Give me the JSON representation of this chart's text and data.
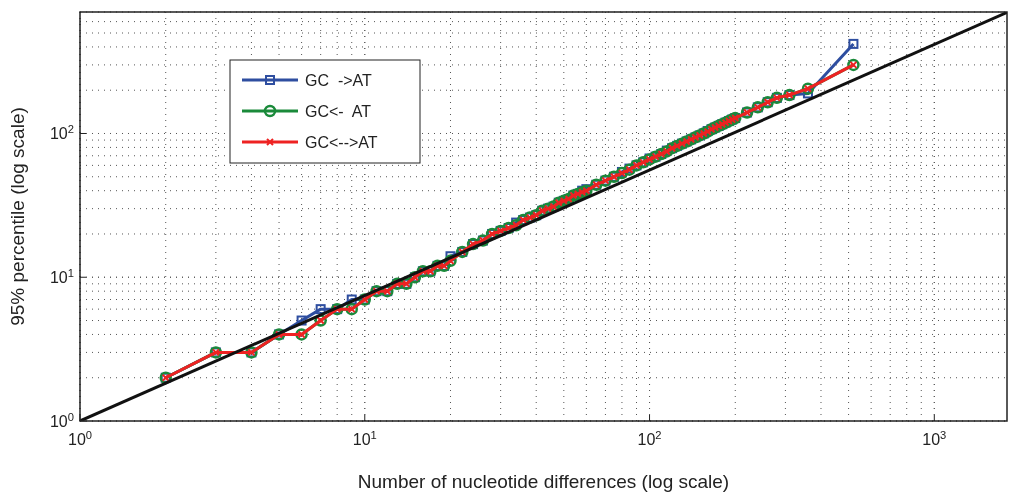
{
  "chart_data": {
    "type": "line",
    "xlabel": "Number of nucleotide differences (log scale)",
    "ylabel": "95% percentile (log scale)",
    "log": "xy",
    "grid": true,
    "legend": "top left",
    "line_style": "solid",
    "xlim": [
      1,
      1800
    ],
    "ylim": [
      1,
      700
    ],
    "xticks": [
      {
        "value": 1,
        "label": "10$^{0}$"
      },
      {
        "value": 10,
        "label": "10$^{1}$"
      },
      {
        "value": 100,
        "label": "10$^{2}$"
      },
      {
        "value": 1000,
        "label": "10$^{3}$"
      }
    ],
    "yticks": [
      {
        "value": 1,
        "label": "10$^{0}$"
      },
      {
        "value": 10,
        "label": "10$^{1}$"
      },
      {
        "value": 100,
        "label": "10$^{2}$"
      }
    ],
    "x": [
      2,
      3,
      4,
      5,
      6,
      7,
      8,
      9,
      10,
      11,
      12,
      13,
      14,
      15,
      16,
      17,
      18,
      19,
      20,
      22,
      24,
      26,
      28,
      30,
      32,
      34,
      36,
      38,
      40,
      42,
      44,
      46,
      48,
      50,
      52,
      54,
      56,
      58,
      60,
      65,
      70,
      75,
      80,
      85,
      90,
      95,
      100,
      105,
      110,
      115,
      120,
      125,
      130,
      135,
      140,
      145,
      150,
      155,
      160,
      165,
      170,
      175,
      180,
      185,
      190,
      195,
      200,
      220,
      240,
      260,
      280,
      310,
      360,
      520
    ],
    "series": [
      {
        "name": "GC  ->AT",
        "color": "#2e4ea0",
        "marker": "square",
        "values": [
          2,
          3,
          3,
          4,
          5,
          6,
          6,
          7,
          7,
          8,
          8,
          9,
          9,
          10,
          11,
          11,
          12,
          12,
          14,
          15,
          17,
          18,
          20,
          21,
          22,
          24,
          25,
          26,
          27,
          29,
          30,
          31,
          33,
          34,
          35,
          37,
          38,
          40,
          41,
          44,
          47,
          50,
          54,
          57,
          60,
          63,
          67,
          69,
          72,
          76,
          79,
          82,
          85,
          88,
          91,
          94,
          97,
          100,
          104,
          107,
          110,
          113,
          116,
          119,
          122,
          125,
          128,
          140,
          152,
          165,
          177,
          185,
          190,
          420
        ]
      },
      {
        "name": "GC<-  AT",
        "color": "#1a8a3a",
        "marker": "circle",
        "values": [
          2,
          3,
          3,
          4,
          4,
          5,
          6,
          6,
          7,
          8,
          8,
          9,
          9,
          10,
          11,
          11,
          12,
          12,
          13,
          15,
          17,
          18,
          20,
          21,
          22,
          23,
          25,
          26,
          27,
          29,
          30,
          31,
          33,
          34,
          35,
          37,
          38,
          39,
          40,
          44,
          47,
          50,
          53,
          56,
          60,
          63,
          66,
          69,
          72,
          75,
          79,
          82,
          85,
          88,
          91,
          94,
          97,
          100,
          103,
          107,
          110,
          113,
          116,
          119,
          122,
          125,
          128,
          140,
          152,
          165,
          177,
          185,
          205,
          300
        ]
      },
      {
        "name": "GC<-->AT",
        "color": "#ee2222",
        "marker": "cross",
        "values": [
          2,
          3,
          3,
          4,
          4,
          5,
          6,
          6,
          7,
          8,
          8,
          9,
          9,
          10,
          11,
          11,
          12,
          12,
          13,
          15,
          17,
          18,
          20,
          21,
          22,
          23,
          25,
          26,
          27,
          29,
          30,
          31,
          33,
          34,
          35,
          37,
          38,
          39,
          40,
          44,
          47,
          50,
          53,
          56,
          60,
          63,
          66,
          69,
          72,
          75,
          79,
          82,
          85,
          88,
          91,
          94,
          97,
          100,
          103,
          107,
          110,
          113,
          116,
          119,
          122,
          125,
          128,
          140,
          152,
          165,
          177,
          185,
          205,
          300
        ]
      },
      {
        "color": "#111111",
        "marker": "none",
        "x": [
          1,
          1800
        ],
        "values": [
          1,
          695
        ]
      }
    ]
  }
}
